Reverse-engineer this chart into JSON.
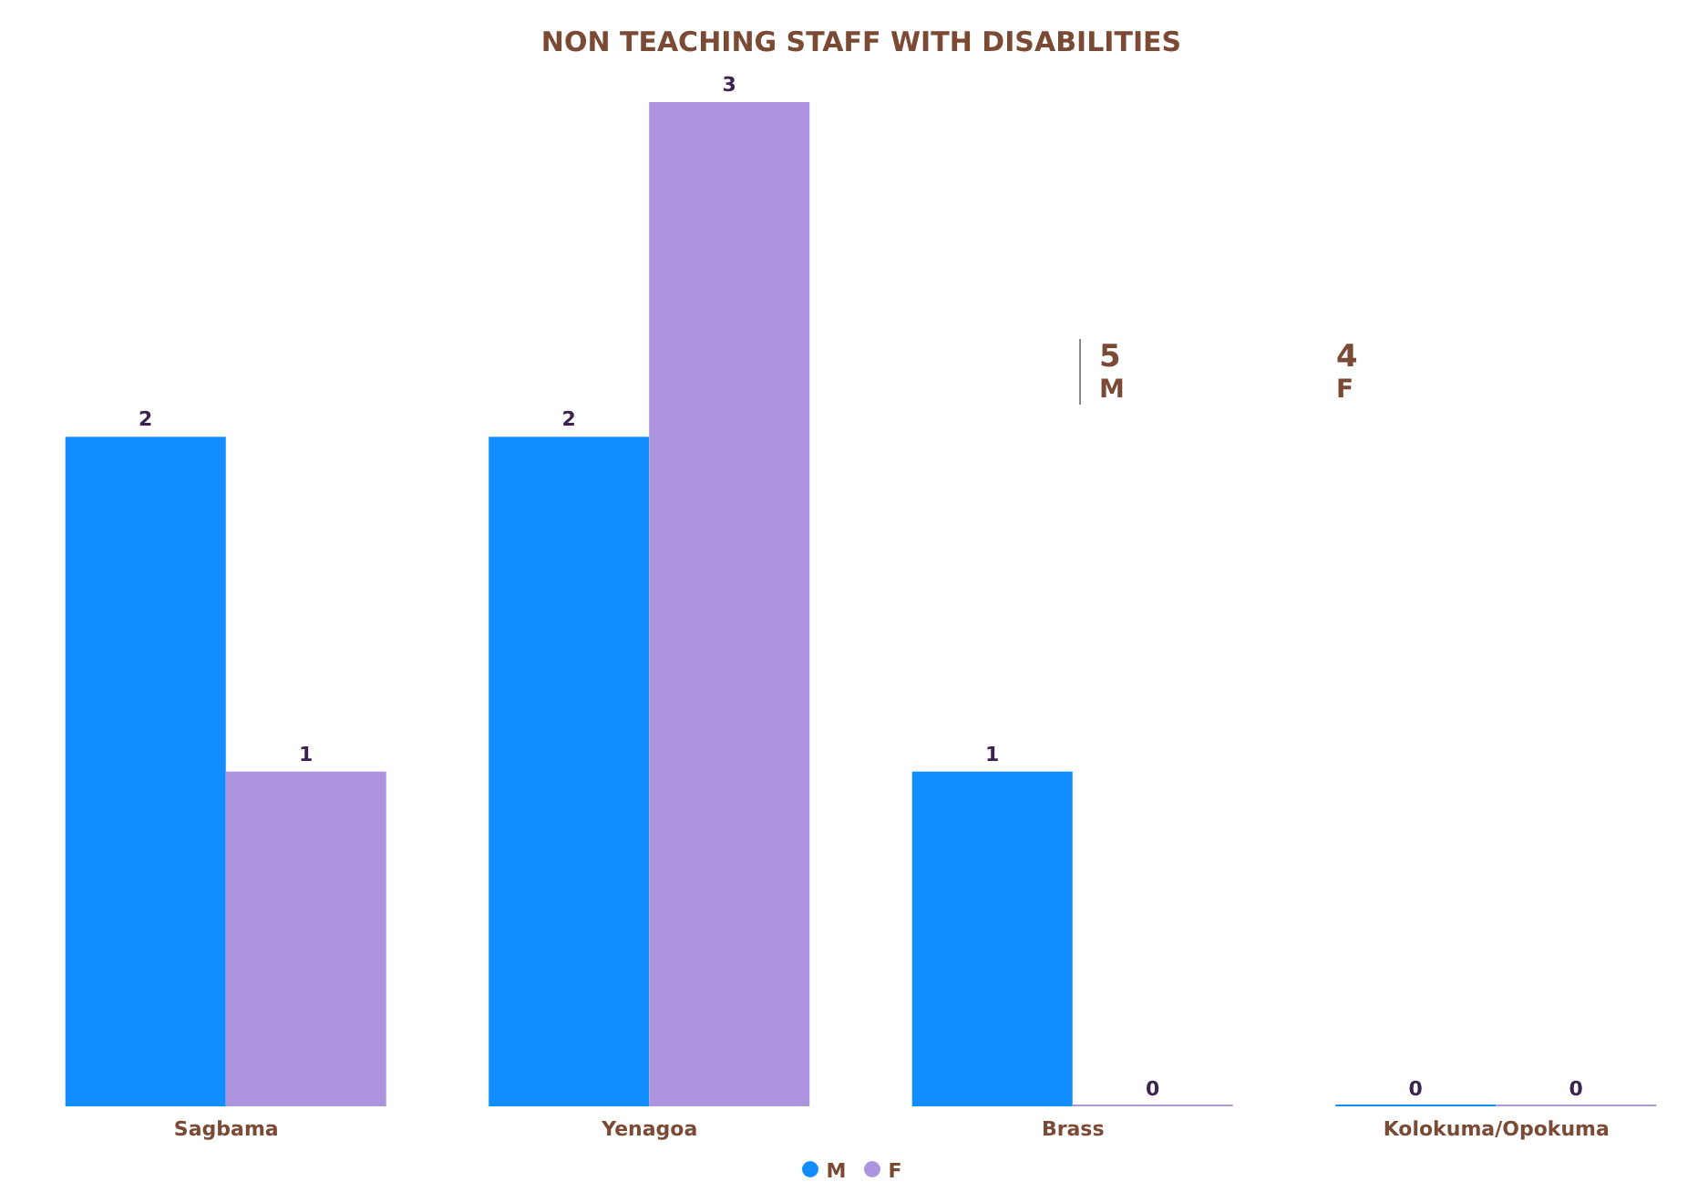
{
  "chart_data": {
    "type": "bar",
    "title": "NON TEACHING STAFF WITH DISABILITIES",
    "categories": [
      "Sagbama",
      "Yenagoa",
      "Brass",
      "Kolokuma/Opokuma"
    ],
    "series": [
      {
        "name": "M",
        "color": "#118dff",
        "values": [
          2,
          2,
          1,
          0
        ]
      },
      {
        "name": "F",
        "color": "#ac94df",
        "values": [
          1,
          3,
          0,
          0
        ]
      }
    ],
    "data_labels": true,
    "legend": "bottom",
    "grid": false,
    "annotations": [
      "5",
      "4",
      "M",
      "F"
    ]
  }
}
